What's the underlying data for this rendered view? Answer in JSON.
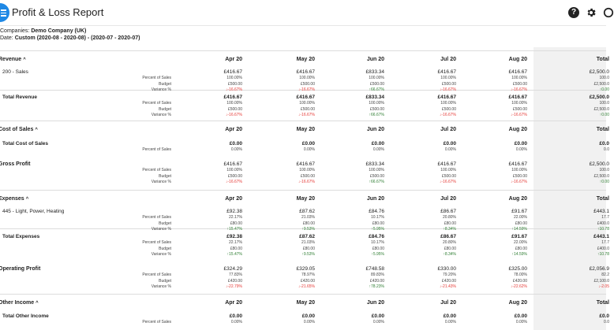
{
  "app": {
    "title": "Profit & Loss Report"
  },
  "meta": {
    "companies_label": "Companies:",
    "companies_value": "Demo Company (UK)",
    "date_label": "Date:",
    "date_value": "Custom (2020-08 - 2020-08) - (2020-07 - 2020-07)"
  },
  "columns": [
    "Apr 20",
    "May 20",
    "Jun 20",
    "Jul 20",
    "Aug 20",
    "Total"
  ],
  "labels": {
    "pct": "Percent of Sales",
    "budget": "Budget",
    "variance": "Variance %"
  },
  "sections": [
    {
      "title": "Revenue",
      "rows": [
        {
          "name": "200 - Sales",
          "bold": false,
          "amounts": [
            "£416.67",
            "£416.67",
            "£833.34",
            "£416.67",
            "£416.67",
            "£2,500.0"
          ],
          "pct": [
            "100.00%",
            "100.00%",
            "100.00%",
            "100.00%",
            "100.00%",
            "100.0"
          ],
          "budget": [
            "£500.00",
            "£500.00",
            "£500.00",
            "£500.00",
            "£500.00",
            "£2,500.0"
          ],
          "variance": [
            "-16.67%",
            "-16.67%",
            "66.67%",
            "-16.67%",
            "-16.67%",
            "0.00"
          ],
          "var_dir": [
            "down",
            "down",
            "up",
            "down",
            "down",
            "up"
          ]
        },
        {
          "name": "Total Revenue",
          "bold": true,
          "amounts": [
            "£416.67",
            "£416.67",
            "£833.34",
            "£416.67",
            "£416.67",
            "£2,500.0"
          ],
          "pct": [
            "100.00%",
            "100.00%",
            "100.00%",
            "100.00%",
            "100.00%",
            "100.0"
          ],
          "budget": [
            "£500.00",
            "£500.00",
            "£500.00",
            "£500.00",
            "£500.00",
            "£2,500.0"
          ],
          "variance": [
            "-16.67%",
            "-16.67%",
            "66.67%",
            "-16.67%",
            "-16.67%",
            "0.00"
          ],
          "var_dir": [
            "down",
            "down",
            "up",
            "down",
            "down",
            "up"
          ]
        }
      ]
    },
    {
      "title": "Cost of Sales",
      "rows": [
        {
          "name": "Total Cost of Sales",
          "bold": true,
          "amounts": [
            "£0.00",
            "£0.00",
            "£0.00",
            "£0.00",
            "£0.00",
            "£0.0"
          ],
          "pct": [
            "0.00%",
            "0.00%",
            "0.00%",
            "0.00%",
            "0.00%",
            "0.0"
          ]
        }
      ]
    },
    {
      "title": "Gross Profit",
      "title_amounts": [
        "£416.67",
        "£416.67",
        "£833.34",
        "£416.67",
        "£416.67",
        "£2,500.0"
      ],
      "rows": [
        {
          "name": "",
          "bold": false,
          "pct": [
            "100.00%",
            "100.00%",
            "100.00%",
            "100.00%",
            "100.00%",
            "100.0"
          ],
          "budget": [
            "£500.00",
            "£500.00",
            "£500.00",
            "£500.00",
            "£500.00",
            "£2,500.0"
          ],
          "variance": [
            "-16.67%",
            "-16.67%",
            "66.67%",
            "-16.67%",
            "-16.67%",
            "0.00"
          ],
          "var_dir": [
            "down",
            "down",
            "up",
            "down",
            "down",
            "up"
          ]
        }
      ]
    },
    {
      "title": "Expenses",
      "rows": [
        {
          "name": "445 - Light, Power, Heating",
          "bold": false,
          "amounts": [
            "£92.38",
            "£87.62",
            "£84.76",
            "£86.67",
            "£91.67",
            "£443.1"
          ],
          "pct": [
            "22.17%",
            "21.03%",
            "10.17%",
            "20.80%",
            "22.00%",
            "17.7"
          ],
          "budget": [
            "£80.00",
            "£80.00",
            "£80.00",
            "£80.00",
            "£80.00",
            "£400.0"
          ],
          "variance": [
            "15.47%",
            "9.53%",
            "5.95%",
            "8.34%",
            "14.59%",
            "10.78"
          ],
          "var_dir": [
            "up",
            "up",
            "up",
            "up",
            "up",
            "up"
          ]
        },
        {
          "name": "Total Expenses",
          "bold": true,
          "amounts": [
            "£92.38",
            "£87.62",
            "£84.76",
            "£86.67",
            "£91.67",
            "£443.1"
          ],
          "pct": [
            "22.17%",
            "21.03%",
            "10.17%",
            "20.80%",
            "22.00%",
            "17.7"
          ],
          "budget": [
            "£80.00",
            "£80.00",
            "£80.00",
            "£80.00",
            "£80.00",
            "£400.0"
          ],
          "variance": [
            "15.47%",
            "9.53%",
            "5.95%",
            "8.34%",
            "14.59%",
            "10.78"
          ],
          "var_dir": [
            "up",
            "up",
            "up",
            "up",
            "up",
            "up"
          ]
        }
      ]
    },
    {
      "title": "Operating Profit",
      "title_amounts": [
        "£324.29",
        "£329.05",
        "£748.58",
        "£330.00",
        "£325.00",
        "£2,056.9"
      ],
      "rows": [
        {
          "name": "",
          "bold": false,
          "pct": [
            "77.83%",
            "78.97%",
            "89.83%",
            "79.20%",
            "78.00%",
            "82.2"
          ],
          "budget": [
            "£420.00",
            "£420.00",
            "£420.00",
            "£420.00",
            "£420.00",
            "£2,100.0"
          ],
          "variance": [
            "-22.79%",
            "-21.65%",
            "78.23%",
            "-21.43%",
            "-22.62%",
            "-2.05"
          ],
          "var_dir": [
            "down",
            "down",
            "up",
            "down",
            "down",
            "down"
          ]
        }
      ]
    },
    {
      "title": "Other Income",
      "rows": [
        {
          "name": "Total Other Income",
          "bold": true,
          "amounts": [
            "£0.00",
            "£0.00",
            "£0.00",
            "£0.00",
            "£0.00",
            "£0.0"
          ],
          "pct": [
            "0.00%",
            "0.00%",
            "0.00%",
            "0.00%",
            "0.00%",
            "0.0"
          ]
        }
      ]
    }
  ],
  "colors": {
    "accent": "#1e88e5",
    "negative": "#e53935",
    "positive": "#2e7d32",
    "total_column": "#f1f1f1"
  }
}
